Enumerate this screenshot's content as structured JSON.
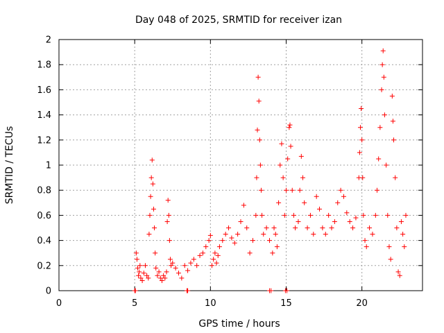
{
  "chart_data": {
    "type": "scatter",
    "title": "Day 048 of 2025, SRMTID for receiver izan",
    "xlabel": "GPS time / hours",
    "ylabel": "SRMTID / TECUs",
    "xlim": [
      0,
      24
    ],
    "ylim": [
      0,
      2
    ],
    "grid": true,
    "marker": "plus",
    "color": "#ff0000",
    "x_ticks": [
      0,
      5,
      10,
      15,
      20
    ],
    "x_tick_labels": [
      "0",
      "5",
      "10",
      "15",
      "20"
    ],
    "y_ticks": [
      0,
      0.2,
      0.4,
      0.6,
      0.8,
      1,
      1.2,
      1.4,
      1.6,
      1.8,
      2
    ],
    "y_tick_labels": [
      "0",
      "0.2",
      "0.4",
      "0.6",
      "0.8",
      "1",
      "1.2",
      "1.4",
      "1.6",
      "1.8",
      "2"
    ],
    "series": [
      {
        "name": "SRMTID",
        "points": [
          [
            5.0,
            0.0
          ],
          [
            5.05,
            0.0
          ],
          [
            8.45,
            0.0
          ],
          [
            8.5,
            0.0
          ],
          [
            13.9,
            0.0
          ],
          [
            14.0,
            0.0
          ],
          [
            14.95,
            0.0
          ],
          [
            15.05,
            0.0
          ],
          [
            5.1,
            0.3
          ],
          [
            5.15,
            0.25
          ],
          [
            5.2,
            0.18
          ],
          [
            5.25,
            0.12
          ],
          [
            5.3,
            0.15
          ],
          [
            5.35,
            0.2
          ],
          [
            5.4,
            0.1
          ],
          [
            5.5,
            0.08
          ],
          [
            5.6,
            0.14
          ],
          [
            5.7,
            0.2
          ],
          [
            5.8,
            0.12
          ],
          [
            5.9,
            0.1
          ],
          [
            5.95,
            0.45
          ],
          [
            6.0,
            0.6
          ],
          [
            6.05,
            0.75
          ],
          [
            6.1,
            0.9
          ],
          [
            6.15,
            1.04
          ],
          [
            6.2,
            0.85
          ],
          [
            6.25,
            0.65
          ],
          [
            6.3,
            0.5
          ],
          [
            6.35,
            0.3
          ],
          [
            6.4,
            0.18
          ],
          [
            6.5,
            0.12
          ],
          [
            6.6,
            0.15
          ],
          [
            6.7,
            0.1
          ],
          [
            6.8,
            0.08
          ],
          [
            6.9,
            0.12
          ],
          [
            7.0,
            0.1
          ],
          [
            7.1,
            0.15
          ],
          [
            7.15,
            0.55
          ],
          [
            7.2,
            0.72
          ],
          [
            7.25,
            0.6
          ],
          [
            7.3,
            0.4
          ],
          [
            7.35,
            0.25
          ],
          [
            7.4,
            0.2
          ],
          [
            7.5,
            0.22
          ],
          [
            7.7,
            0.18
          ],
          [
            7.9,
            0.14
          ],
          [
            8.1,
            0.1
          ],
          [
            8.3,
            0.2
          ],
          [
            8.5,
            0.16
          ],
          [
            8.7,
            0.22
          ],
          [
            8.9,
            0.25
          ],
          [
            9.1,
            0.2
          ],
          [
            9.3,
            0.28
          ],
          [
            9.5,
            0.3
          ],
          [
            9.7,
            0.35
          ],
          [
            9.9,
            0.4
          ],
          [
            10.0,
            0.44
          ],
          [
            10.1,
            0.2
          ],
          [
            10.2,
            0.25
          ],
          [
            10.3,
            0.3
          ],
          [
            10.4,
            0.22
          ],
          [
            10.5,
            0.28
          ],
          [
            10.6,
            0.35
          ],
          [
            10.8,
            0.4
          ],
          [
            11.0,
            0.45
          ],
          [
            11.2,
            0.5
          ],
          [
            11.4,
            0.42
          ],
          [
            11.6,
            0.38
          ],
          [
            11.8,
            0.45
          ],
          [
            12.0,
            0.55
          ],
          [
            12.2,
            0.68
          ],
          [
            12.4,
            0.5
          ],
          [
            12.6,
            0.3
          ],
          [
            12.8,
            0.4
          ],
          [
            13.0,
            0.6
          ],
          [
            13.05,
            0.9
          ],
          [
            13.1,
            1.28
          ],
          [
            13.15,
            1.7
          ],
          [
            13.2,
            1.51
          ],
          [
            13.25,
            1.2
          ],
          [
            13.3,
            1.0
          ],
          [
            13.35,
            0.8
          ],
          [
            13.4,
            0.6
          ],
          [
            13.5,
            0.45
          ],
          [
            13.7,
            0.5
          ],
          [
            13.9,
            0.4
          ],
          [
            14.1,
            0.3
          ],
          [
            14.2,
            0.5
          ],
          [
            14.3,
            0.45
          ],
          [
            14.4,
            0.35
          ],
          [
            14.5,
            0.7
          ],
          [
            14.6,
            1.0
          ],
          [
            14.7,
            1.17
          ],
          [
            14.8,
            0.9
          ],
          [
            14.9,
            0.6
          ],
          [
            15.0,
            0.8
          ],
          [
            15.1,
            1.05
          ],
          [
            15.2,
            1.3
          ],
          [
            15.25,
            1.32
          ],
          [
            15.3,
            1.15
          ],
          [
            15.4,
            0.8
          ],
          [
            15.5,
            0.6
          ],
          [
            15.6,
            0.5
          ],
          [
            15.8,
            0.55
          ],
          [
            15.9,
            0.8
          ],
          [
            16.0,
            1.07
          ],
          [
            16.1,
            0.9
          ],
          [
            16.2,
            0.7
          ],
          [
            16.4,
            0.5
          ],
          [
            16.6,
            0.6
          ],
          [
            16.8,
            0.45
          ],
          [
            17.0,
            0.75
          ],
          [
            17.2,
            0.65
          ],
          [
            17.4,
            0.5
          ],
          [
            17.6,
            0.45
          ],
          [
            17.8,
            0.6
          ],
          [
            18.0,
            0.5
          ],
          [
            18.2,
            0.55
          ],
          [
            18.4,
            0.7
          ],
          [
            18.6,
            0.8
          ],
          [
            18.8,
            0.75
          ],
          [
            19.0,
            0.62
          ],
          [
            19.2,
            0.55
          ],
          [
            19.4,
            0.5
          ],
          [
            19.6,
            0.58
          ],
          [
            19.8,
            0.9
          ],
          [
            19.85,
            1.1
          ],
          [
            19.9,
            1.3
          ],
          [
            19.95,
            1.45
          ],
          [
            20.0,
            1.2
          ],
          [
            20.05,
            0.9
          ],
          [
            20.1,
            0.6
          ],
          [
            20.2,
            0.4
          ],
          [
            20.3,
            0.35
          ],
          [
            20.5,
            0.5
          ],
          [
            20.7,
            0.45
          ],
          [
            20.9,
            0.6
          ],
          [
            21.0,
            0.8
          ],
          [
            21.1,
            1.05
          ],
          [
            21.2,
            1.3
          ],
          [
            21.3,
            1.6
          ],
          [
            21.35,
            1.8
          ],
          [
            21.4,
            1.91
          ],
          [
            21.45,
            1.7
          ],
          [
            21.5,
            1.4
          ],
          [
            21.6,
            1.0
          ],
          [
            21.7,
            0.6
          ],
          [
            21.8,
            0.35
          ],
          [
            21.9,
            0.25
          ],
          [
            22.0,
            1.55
          ],
          [
            22.05,
            1.35
          ],
          [
            22.1,
            1.2
          ],
          [
            22.2,
            0.9
          ],
          [
            22.3,
            0.5
          ],
          [
            22.4,
            0.15
          ],
          [
            22.5,
            0.12
          ],
          [
            22.6,
            0.55
          ],
          [
            22.7,
            0.45
          ],
          [
            22.8,
            0.35
          ],
          [
            22.9,
            0.6
          ]
        ]
      }
    ]
  }
}
